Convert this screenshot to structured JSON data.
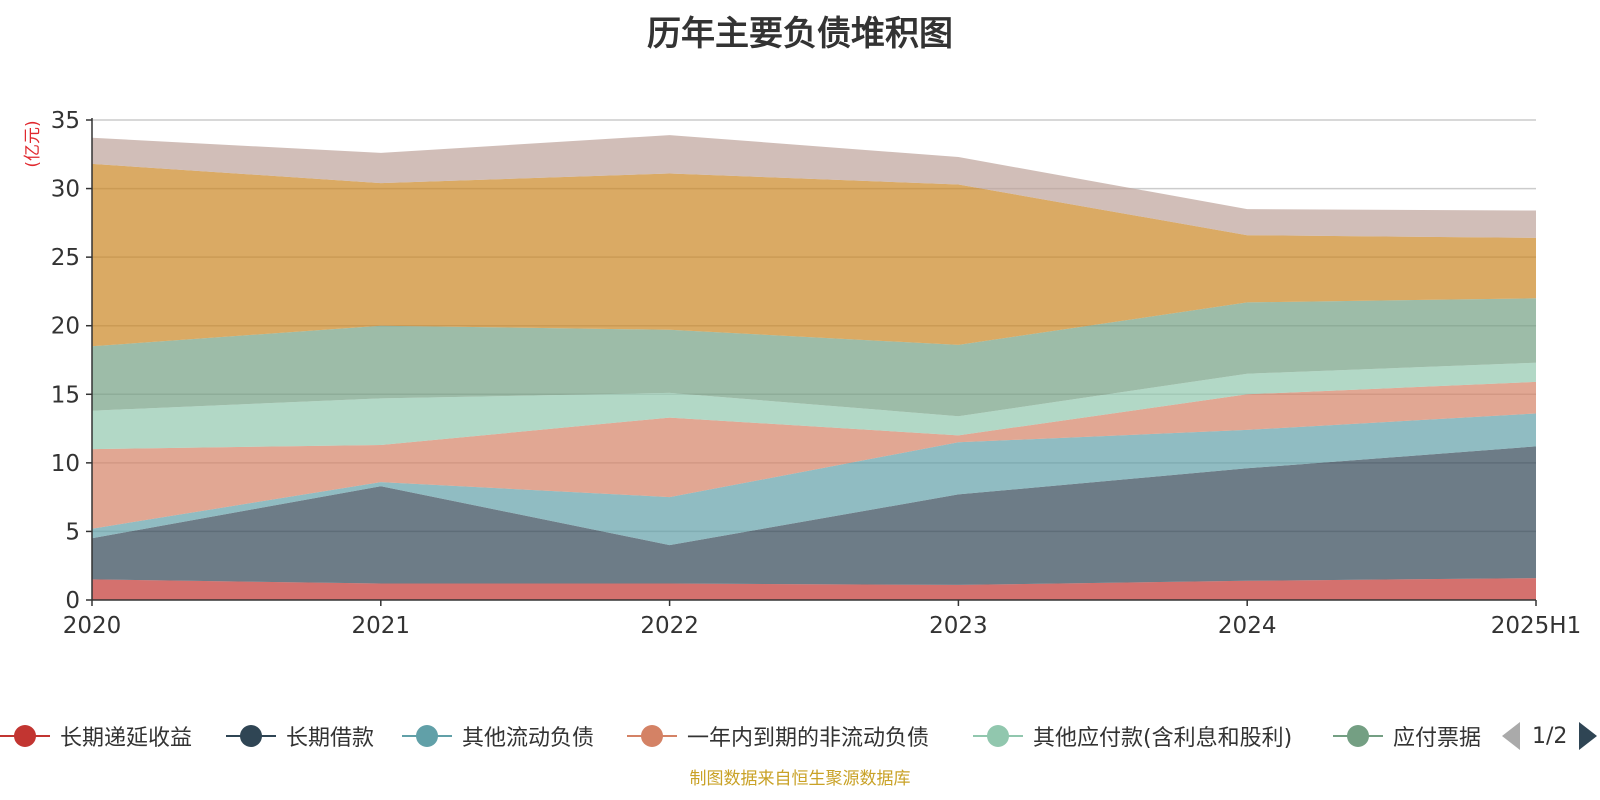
{
  "chart_data": {
    "type": "area",
    "stacked": true,
    "title": "历年主要负债堆积图",
    "ylabel": "(亿元)",
    "xlabel": "",
    "categories": [
      "2020",
      "2021",
      "2022",
      "2023",
      "2024",
      "2025H1"
    ],
    "ylim": [
      0,
      35
    ],
    "yticks": [
      0,
      5,
      10,
      15,
      20,
      25,
      30,
      35
    ],
    "grid": true,
    "series": [
      {
        "name": "长期递延收益",
        "color": "#c23531",
        "values": [
          1.5,
          1.2,
          1.2,
          1.1,
          1.4,
          1.6
        ]
      },
      {
        "name": "长期借款",
        "color": "#2f4554",
        "values": [
          3.0,
          7.1,
          2.8,
          6.6,
          8.2,
          9.6
        ]
      },
      {
        "name": "其他流动负债",
        "color": "#61a0a8",
        "values": [
          0.7,
          0.3,
          3.5,
          3.8,
          2.8,
          2.4
        ]
      },
      {
        "name": "一年内到期的非流动负债",
        "color": "#d48265",
        "values": [
          5.8,
          2.7,
          5.8,
          0.5,
          2.6,
          2.3
        ]
      },
      {
        "name": "其他应付款(含利息和股利)",
        "color": "#91c7ae",
        "values": [
          2.8,
          3.4,
          1.8,
          1.4,
          1.5,
          1.4
        ]
      },
      {
        "name": "应付票据",
        "color": "#749f83",
        "values": [
          4.7,
          5.3,
          4.6,
          5.2,
          5.2,
          4.7
        ]
      },
      {
        "name": "",
        "color": "#ca8622",
        "values": [
          13.3,
          10.4,
          11.4,
          11.7,
          4.9,
          4.4
        ]
      },
      {
        "name": "",
        "color": "#bda29a",
        "values": [
          1.9,
          2.2,
          2.8,
          2.0,
          1.9,
          2.0
        ]
      }
    ]
  },
  "legend": {
    "page_text": "1/2",
    "visible_labels": [
      "长期递延收益",
      "长期借款",
      "其他流动负债",
      "一年内到期的非流动负债",
      "其他应付款(含利息和股利)",
      "应付票据"
    ],
    "last_item_clipped_text": "应付票据"
  },
  "source_note": "制图数据来自恒生聚源数据库"
}
